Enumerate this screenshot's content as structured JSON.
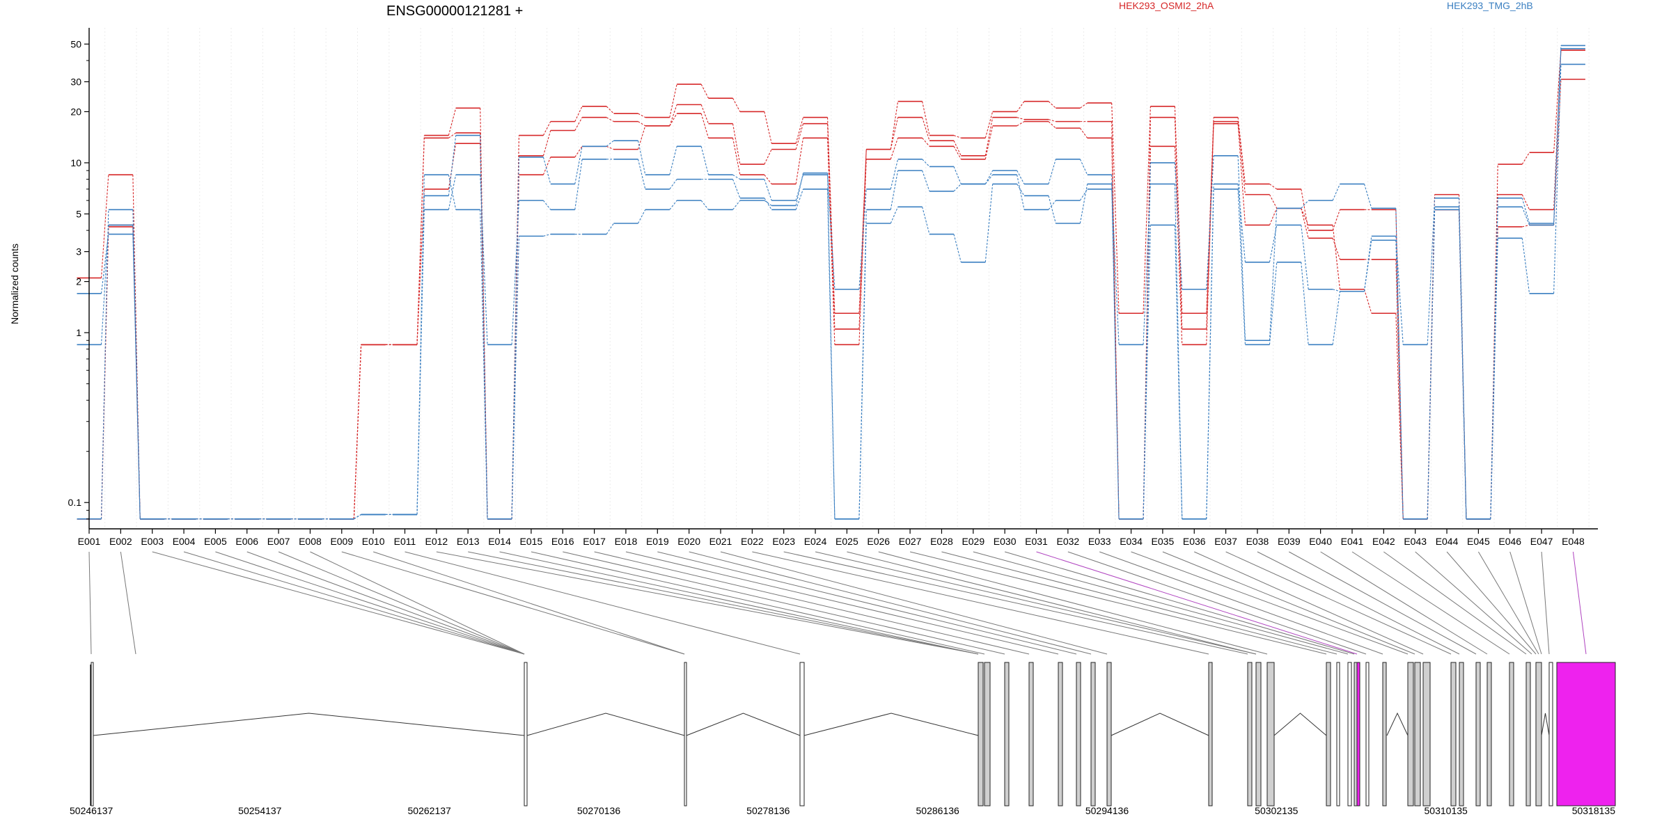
{
  "chart_data": {
    "type": "line",
    "title": "ENSG00000121281 +",
    "ylabel": "Normalized counts",
    "scale": "log",
    "ylim": [
      0.07,
      60
    ],
    "yticks": [
      0.1,
      1,
      2,
      3,
      5,
      10,
      20,
      30,
      50
    ],
    "ytick_labels": [
      "0.1",
      "1",
      "2",
      "3",
      "5",
      "10",
      "20",
      "30",
      "50"
    ],
    "categories": [
      "E001",
      "E002",
      "E003",
      "E004",
      "E005",
      "E006",
      "E007",
      "E008",
      "E009",
      "E010",
      "E011",
      "E012",
      "E013",
      "E014",
      "E015",
      "E016",
      "E017",
      "E018",
      "E019",
      "E020",
      "E021",
      "E022",
      "E023",
      "E024",
      "E025",
      "E026",
      "E027",
      "E028",
      "E029",
      "E030",
      "E031",
      "E032",
      "E033",
      "E034",
      "E035",
      "E036",
      "E037",
      "E038",
      "E039",
      "E040",
      "E041",
      "E042",
      "E043",
      "E044",
      "E045",
      "E046",
      "E047",
      "E048"
    ],
    "legend": [
      {
        "label": "HEK293_OSMI2_2hA",
        "color": "#d62728"
      },
      {
        "label": "HEK293_TMG_2hB",
        "color": "#3a7fc1"
      }
    ],
    "series": [
      {
        "color": "#d62728",
        "values": [
          2.1,
          8.5,
          0.08,
          0.08,
          0.08,
          0.08,
          0.08,
          0.08,
          0.08,
          0.85,
          0.85,
          14.5,
          21,
          0.08,
          14.5,
          17.5,
          21.5,
          19.5,
          18.5,
          29,
          24,
          20,
          13,
          18.5,
          1.3,
          12,
          23,
          14.5,
          14,
          20,
          23,
          21,
          22.5,
          1.3,
          21.5,
          1.3,
          18.5,
          7.5,
          7,
          4,
          5.3,
          5.3,
          0.08,
          6.5,
          0.08,
          9.8,
          11.5,
          46
        ]
      },
      {
        "color": "#d62728",
        "values": [
          0.08,
          4.3,
          0.08,
          0.08,
          0.08,
          0.08,
          0.08,
          0.08,
          0.08,
          0.85,
          0.85,
          14,
          15,
          0.08,
          11,
          15.5,
          18.5,
          17.5,
          16.5,
          22,
          17,
          9.8,
          12,
          17,
          1.05,
          12,
          18.5,
          13.5,
          11,
          18.5,
          18,
          17.5,
          17.5,
          0.08,
          18.5,
          1.05,
          17.5,
          6.5,
          5.4,
          3.6,
          2.7,
          2.7,
          0.08,
          5.3,
          0.08,
          6.5,
          5.3,
          46
        ]
      },
      {
        "color": "#d62728",
        "values": [
          0.08,
          4.2,
          0.08,
          0.08,
          0.08,
          0.08,
          0.08,
          0.08,
          0.08,
          0.85,
          0.85,
          7,
          13,
          0.08,
          8.5,
          10.8,
          12.5,
          12,
          16.5,
          19.5,
          14,
          8.5,
          7.5,
          14,
          0.85,
          10.5,
          14,
          12.5,
          10.5,
          16.5,
          17.5,
          16,
          14,
          0.08,
          12.5,
          0.85,
          17,
          4.3,
          5.4,
          4.3,
          1.8,
          1.3,
          0.08,
          5.3,
          0.08,
          4.2,
          4.3,
          31
        ]
      },
      {
        "color": "#3a7fc1",
        "values": [
          0.08,
          5.3,
          0.08,
          0.08,
          0.08,
          0.08,
          0.08,
          0.08,
          0.08,
          0.085,
          0.085,
          6.4,
          14.5,
          0.08,
          10.8,
          7.5,
          12.5,
          13.5,
          8.5,
          12.5,
          8.5,
          8,
          6,
          8.5,
          1.8,
          7,
          10.5,
          9.5,
          7.5,
          9,
          7.5,
          10.5,
          8.5,
          0.08,
          10,
          1.8,
          11,
          0.9,
          5.4,
          6,
          7.5,
          5.4,
          0.08,
          5.3,
          0.08,
          6.2,
          4.4,
          49
        ]
      },
      {
        "color": "#3a7fc1",
        "values": [
          1.7,
          3.8,
          0.08,
          0.08,
          0.08,
          0.08,
          0.08,
          0.08,
          0.08,
          0.085,
          0.085,
          5.3,
          8.5,
          0.85,
          6,
          5.3,
          10.5,
          10.5,
          7,
          8,
          8,
          6.2,
          5.3,
          7,
          0.08,
          5.3,
          9,
          6.8,
          7.5,
          8.5,
          5.3,
          6,
          7,
          0.85,
          7.5,
          0.08,
          7.5,
          2.6,
          4.3,
          1.8,
          1.75,
          3.7,
          0.85,
          6.2,
          0.08,
          5.5,
          4.3,
          47
        ]
      },
      {
        "color": "#3a7fc1",
        "values": [
          0.85,
          4.3,
          0.08,
          0.08,
          0.08,
          0.08,
          0.08,
          0.08,
          0.08,
          0.085,
          0.085,
          8.5,
          5.3,
          0.08,
          3.7,
          3.8,
          3.8,
          4.4,
          5.3,
          6,
          5.3,
          6,
          5.6,
          8.7,
          0.08,
          4.4,
          5.5,
          3.8,
          2.6,
          7.5,
          6.4,
          4.4,
          7.5,
          0.08,
          4.3,
          0.08,
          7,
          0.85,
          2.6,
          0.85,
          1.75,
          3.5,
          0.08,
          5.5,
          0.08,
          3.6,
          1.7,
          38
        ]
      }
    ],
    "genome_axis_labels": [
      "50246137",
      "50254137",
      "50262137",
      "50270136",
      "50278136",
      "50286136",
      "50294136",
      "50302135",
      "50310135",
      "50318135"
    ]
  }
}
